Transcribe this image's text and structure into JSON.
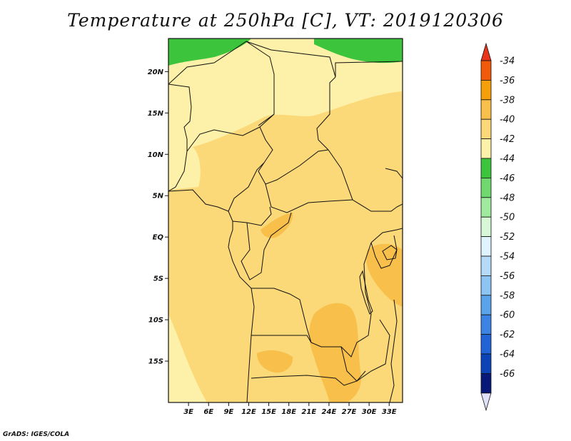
{
  "title": "Temperature at 250hPa [C], VT: 2019120306",
  "credit": "GrADS: IGES/COLA",
  "map": {
    "lat_range": [
      -20,
      24
    ],
    "lon_range": [
      0,
      35
    ],
    "lat_ticks": [
      {
        "value": 20,
        "label": "20N"
      },
      {
        "value": 15,
        "label": "15N"
      },
      {
        "value": 10,
        "label": "10N"
      },
      {
        "value": 5,
        "label": "5N"
      },
      {
        "value": 0,
        "label": "EQ"
      },
      {
        "value": -5,
        "label": "5S"
      },
      {
        "value": -10,
        "label": "10S"
      },
      {
        "value": -15,
        "label": "15S"
      }
    ],
    "lon_ticks": [
      {
        "value": 3,
        "label": "3E"
      },
      {
        "value": 6,
        "label": "6E"
      },
      {
        "value": 9,
        "label": "9E"
      },
      {
        "value": 12,
        "label": "12E"
      },
      {
        "value": 15,
        "label": "15E"
      },
      {
        "value": 18,
        "label": "18E"
      },
      {
        "value": 21,
        "label": "21E"
      },
      {
        "value": 24,
        "label": "24E"
      },
      {
        "value": 27,
        "label": "27E"
      },
      {
        "value": 30,
        "label": "30E"
      },
      {
        "value": 33,
        "label": "33E"
      }
    ]
  },
  "colorbar": {
    "top_color": "#e8331a",
    "bottom_color": "#e0e0f8",
    "levels": [
      {
        "label": "-34",
        "color": "#f05a0a"
      },
      {
        "label": "-36",
        "color": "#f5a00a"
      },
      {
        "label": "-38",
        "color": "#f8c04a"
      },
      {
        "label": "-40",
        "color": "#fbd878"
      },
      {
        "label": "-42",
        "color": "#fdf0a8"
      },
      {
        "label": "-44",
        "color": "#3cc43c"
      },
      {
        "label": "-46",
        "color": "#6fd86f"
      },
      {
        "label": "-48",
        "color": "#a0eaa0"
      },
      {
        "label": "-50",
        "color": "#d6f8d6"
      },
      {
        "label": "-52",
        "color": "#e0f4ff"
      },
      {
        "label": "-54",
        "color": "#b4daf8"
      },
      {
        "label": "-56",
        "color": "#8cc4f4"
      },
      {
        "label": "-58",
        "color": "#5aa4ec"
      },
      {
        "label": "-60",
        "color": "#3c84e4"
      },
      {
        "label": "-62",
        "color": "#2064d8"
      },
      {
        "label": "-64",
        "color": "#0c44b8"
      },
      {
        "label": "-66",
        "color": "#081878"
      }
    ]
  },
  "field_colors": {
    "green": "#3cc43c",
    "pale_yellow": "#fdf0a8",
    "light_orange": "#fbd878",
    "orange": "#f8c04a"
  }
}
